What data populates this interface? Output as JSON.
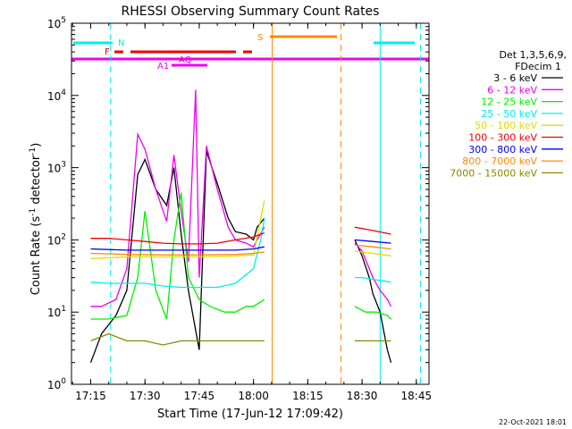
{
  "chart_data": {
    "type": "line",
    "title": "RHESSI Observing Summary Count Rates",
    "xlabel": "Start Time (17-Jun-12 17:09:42)",
    "ylabel_main": "Count Rate (s",
    "ylabel_sup1": "-1",
    "ylabel_mid": " detector",
    "ylabel_sup2": "-1",
    "ylabel_end": ")",
    "xlim": [
      "17:09:42",
      "18:48:30"
    ],
    "ylim": [
      1,
      100000
    ],
    "yscale": "log",
    "x_ticks": [
      "17:15",
      "17:30",
      "17:45",
      "18:00",
      "18:15",
      "18:30",
      "18:45"
    ],
    "y_ticks": [
      {
        "value": 1,
        "base": "10",
        "exp": "0"
      },
      {
        "value": 10,
        "base": "10",
        "exp": "1"
      },
      {
        "value": 100,
        "base": "10",
        "exp": "2"
      },
      {
        "value": 1000,
        "base": "10",
        "exp": "3"
      },
      {
        "value": 10000,
        "base": "10",
        "exp": "4"
      },
      {
        "value": 100000,
        "base": "10",
        "exp": "5"
      }
    ],
    "legend": {
      "placement": "right",
      "header": [
        "Det 1,3,5,6,9,",
        "FDecim 1"
      ],
      "entries": [
        {
          "label": "3 - 6 keV",
          "color": "#000000"
        },
        {
          "label": "6 - 12 keV",
          "color": "#ee00ee"
        },
        {
          "label": "12 - 25 keV",
          "color": "#00ee00"
        },
        {
          "label": "25 - 50 keV",
          "color": "#00eeee"
        },
        {
          "label": "50 - 100 keV",
          "color": "#dddd00"
        },
        {
          "label": "100 - 300 keV",
          "color": "#ee0000"
        },
        {
          "label": "300 - 800 keV",
          "color": "#0000ee"
        },
        {
          "label": "800 - 7000 keV",
          "color": "#ff8800"
        },
        {
          "label": "7000 - 15000 keV",
          "color": "#888800"
        }
      ]
    },
    "flags": [
      {
        "label": "N",
        "color": "#00eeee"
      },
      {
        "label": "F",
        "color": "#ee0000"
      },
      {
        "label": "S",
        "color": "#ff8800"
      },
      {
        "label": "AQ",
        "color": "#ee00ee"
      },
      {
        "label": "A1",
        "color": "#ee00ee"
      }
    ],
    "vertical_markers": [
      {
        "time": "17:20:30",
        "color": "#00eeee",
        "style": "dashed"
      },
      {
        "time": "18:05:10",
        "color": "#ff8800",
        "style": "solid"
      },
      {
        "time": "18:24:10",
        "color": "#ff8800",
        "style": "dashed"
      },
      {
        "time": "18:35:00",
        "color": "#00eeee",
        "style": "solid"
      },
      {
        "time": "18:46:10",
        "color": "#00eeee",
        "style": "dashed"
      }
    ],
    "series": [
      {
        "name": "3 - 6 keV",
        "color": "#000000",
        "x": [
          "17:15",
          "17:18",
          "17:22",
          "17:25",
          "17:28",
          "17:30",
          "17:33",
          "17:36",
          "17:38",
          "17:40",
          "17:42",
          "17:45",
          "17:47",
          "17:50",
          "17:53",
          "17:55",
          "17:58",
          "18:00",
          "18:01",
          "18:03",
          "18:28",
          "18:30",
          "18:32",
          "18:33",
          "18:35",
          "18:37",
          "18:38"
        ],
        "values": [
          2,
          5,
          9,
          20,
          800,
          1300,
          500,
          300,
          1000,
          120,
          20,
          3,
          1700,
          600,
          200,
          130,
          120,
          100,
          150,
          200,
          100,
          60,
          30,
          18,
          10,
          3,
          2
        ]
      },
      {
        "name": "6 - 12 keV",
        "color": "#ee00ee",
        "x": [
          "17:15",
          "17:18",
          "17:22",
          "17:25",
          "17:28",
          "17:30",
          "17:33",
          "17:36",
          "17:38",
          "17:40",
          "17:42",
          "17:44",
          "17:45",
          "17:47",
          "17:50",
          "17:53",
          "17:55",
          "17:58",
          "18:00",
          "18:01",
          "18:03",
          "18:28",
          "18:30",
          "18:32",
          "18:33",
          "18:35",
          "18:37",
          "18:38"
        ],
        "values": [
          12,
          12,
          15,
          40,
          2900,
          1800,
          500,
          180,
          1500,
          250,
          50,
          12000,
          30,
          2000,
          500,
          150,
          100,
          90,
          80,
          100,
          150,
          90,
          70,
          40,
          30,
          20,
          15,
          12
        ]
      },
      {
        "name": "12 - 25 keV",
        "color": "#00ee00",
        "x": [
          "17:15",
          "17:20",
          "17:25",
          "17:28",
          "17:30",
          "17:33",
          "17:36",
          "17:38",
          "17:40",
          "17:42",
          "17:45",
          "17:48",
          "17:52",
          "17:55",
          "17:58",
          "18:00",
          "18:03",
          "18:28",
          "18:31",
          "18:34",
          "18:37",
          "18:38"
        ],
        "values": [
          8,
          8,
          9,
          30,
          250,
          20,
          8,
          100,
          450,
          30,
          15,
          12,
          10,
          10,
          12,
          12,
          15,
          12,
          10,
          10,
          9,
          8
        ]
      },
      {
        "name": "25 - 50 keV",
        "color": "#00eeee",
        "x": [
          "17:15",
          "17:20",
          "17:25",
          "17:30",
          "17:35",
          "17:40",
          "17:45",
          "17:50",
          "17:55",
          "18:00",
          "18:02",
          "18:03",
          "18:28",
          "18:30",
          "18:34",
          "18:38"
        ],
        "values": [
          26,
          25,
          25,
          25,
          23,
          22,
          22,
          22,
          25,
          40,
          100,
          200,
          30,
          30,
          28,
          26
        ]
      },
      {
        "name": "50 - 100 keV",
        "color": "#dddd00",
        "x": [
          "17:15",
          "17:25",
          "17:35",
          "17:45",
          "17:55",
          "18:00",
          "18:03",
          "18:28",
          "18:33",
          "18:38"
        ],
        "values": [
          55,
          58,
          58,
          58,
          60,
          62,
          350,
          70,
          65,
          60
        ]
      },
      {
        "name": "100 - 300 keV",
        "color": "#ee0000",
        "x": [
          "17:15",
          "17:20",
          "17:25",
          "17:30",
          "17:35",
          "17:40",
          "17:45",
          "17:50",
          "17:55",
          "18:00",
          "18:03",
          "18:28",
          "18:33",
          "18:38"
        ],
        "values": [
          105,
          105,
          100,
          95,
          90,
          88,
          88,
          90,
          100,
          110,
          125,
          150,
          135,
          120
        ]
      },
      {
        "name": "300 - 800 keV",
        "color": "#0000ee",
        "x": [
          "17:15",
          "17:25",
          "17:35",
          "17:45",
          "17:55",
          "18:00",
          "18:03",
          "18:28",
          "18:33",
          "18:38"
        ],
        "values": [
          75,
          72,
          72,
          72,
          72,
          75,
          80,
          100,
          95,
          90
        ]
      },
      {
        "name": "800 - 7000 keV",
        "color": "#ff8800",
        "x": [
          "17:15",
          "17:25",
          "17:35",
          "17:45",
          "17:55",
          "18:00",
          "18:03",
          "18:28",
          "18:33",
          "18:38"
        ],
        "values": [
          65,
          63,
          62,
          62,
          63,
          65,
          68,
          85,
          80,
          75
        ]
      },
      {
        "name": "7000 - 15000 keV",
        "color": "#888800",
        "x": [
          "17:15",
          "17:20",
          "17:25",
          "17:30",
          "17:35",
          "17:40",
          "17:45",
          "17:50",
          "17:55",
          "18:00",
          "18:03",
          "18:28",
          "18:33",
          "18:38"
        ],
        "values": [
          4,
          5,
          4,
          4,
          3.5,
          4,
          4,
          4,
          4,
          4,
          4,
          4,
          4,
          4
        ]
      }
    ]
  },
  "footer": {
    "date_stamp": "22-Oct-2021 18:01"
  }
}
